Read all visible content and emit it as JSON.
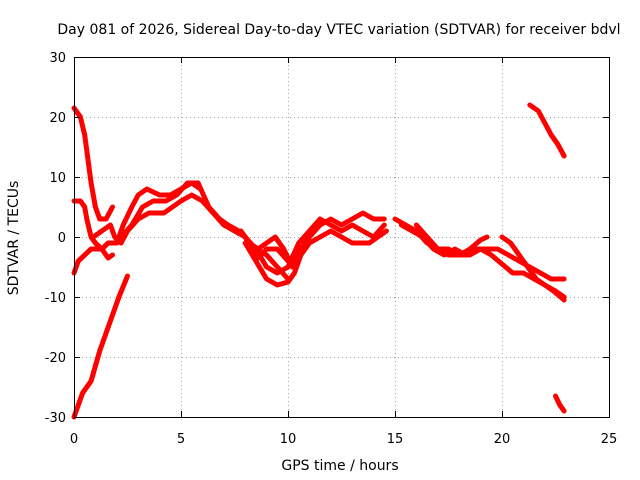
{
  "chart_data": {
    "type": "line",
    "title": "Day 081 of 2026, Sidereal Day-to-day VTEC variation (SDTVAR) for receiver bdvl",
    "xlabel": "GPS time / hours",
    "ylabel": "SDTVAR / TECUs",
    "xlim": [
      0,
      25
    ],
    "ylim": [
      -30,
      30
    ],
    "xticks": [
      0,
      5,
      10,
      15,
      20,
      25
    ],
    "yticks": [
      -30,
      -20,
      -10,
      0,
      10,
      20,
      30
    ],
    "grid": true,
    "legend": "none",
    "series_color": "#ff0000",
    "series": [
      {
        "name": "arc-1",
        "points": [
          [
            0.0,
            21.5
          ],
          [
            0.3,
            20
          ],
          [
            0.5,
            17
          ],
          [
            0.65,
            13
          ],
          [
            0.8,
            9
          ],
          [
            1.0,
            5
          ],
          [
            1.2,
            3
          ],
          [
            1.5,
            3
          ],
          [
            1.8,
            5
          ]
        ]
      },
      {
        "name": "arc-2",
        "points": [
          [
            0.0,
            6
          ],
          [
            0.3,
            6
          ],
          [
            0.5,
            5
          ],
          [
            0.6,
            3
          ],
          [
            0.8,
            0
          ],
          [
            1.0,
            -1
          ],
          [
            1.3,
            -2
          ],
          [
            1.6,
            -3.5
          ],
          [
            1.8,
            -3
          ]
        ]
      },
      {
        "name": "arc-3",
        "points": [
          [
            0.0,
            -6
          ],
          [
            0.2,
            -4
          ],
          [
            0.5,
            -3
          ],
          [
            0.8,
            -2
          ],
          [
            1.0,
            -2
          ],
          [
            1.3,
            -2
          ],
          [
            1.6,
            -1
          ],
          [
            2.0,
            -1
          ],
          [
            2.3,
            2
          ],
          [
            2.7,
            5
          ],
          [
            3.0,
            7
          ],
          [
            3.4,
            8
          ],
          [
            4.0,
            7
          ],
          [
            4.5,
            7
          ],
          [
            5.0,
            8
          ],
          [
            5.5,
            9
          ],
          [
            5.9,
            8
          ]
        ]
      },
      {
        "name": "arc-4",
        "points": [
          [
            0.0,
            -30
          ],
          [
            0.2,
            -28
          ],
          [
            0.4,
            -26
          ],
          [
            0.8,
            -24
          ],
          [
            1.2,
            -19
          ],
          [
            1.5,
            -16
          ],
          [
            1.8,
            -13
          ],
          [
            2.1,
            -10
          ],
          [
            2.5,
            -6.5
          ]
        ]
      },
      {
        "name": "arc-5",
        "points": [
          [
            0.9,
            0
          ],
          [
            1.3,
            1
          ],
          [
            1.7,
            2
          ],
          [
            1.9,
            0
          ],
          [
            2.2,
            -1
          ],
          [
            2.5,
            1
          ],
          [
            3.0,
            3
          ],
          [
            3.5,
            4
          ],
          [
            4.2,
            4
          ],
          [
            5.0,
            6
          ],
          [
            5.5,
            7
          ],
          [
            6.0,
            6
          ],
          [
            6.5,
            4
          ],
          [
            7.0,
            2
          ],
          [
            7.5,
            1
          ],
          [
            8.0,
            0
          ],
          [
            8.5,
            -2
          ],
          [
            9.0,
            -3
          ],
          [
            9.5,
            -5
          ],
          [
            10.0,
            -7
          ]
        ]
      },
      {
        "name": "arc-6",
        "points": [
          [
            2.2,
            0
          ],
          [
            2.7,
            2
          ],
          [
            3.2,
            5
          ],
          [
            3.7,
            6
          ],
          [
            4.3,
            6
          ],
          [
            4.8,
            7
          ],
          [
            5.3,
            9
          ],
          [
            5.8,
            9
          ],
          [
            6.3,
            5
          ],
          [
            6.8,
            3
          ],
          [
            7.2,
            2
          ],
          [
            7.7,
            1
          ],
          [
            8.0,
            0
          ],
          [
            8.3,
            -2
          ],
          [
            8.6,
            -3.5
          ],
          [
            9.0,
            -2
          ],
          [
            9.5,
            -2
          ],
          [
            10.0,
            -4
          ],
          [
            10.3,
            -3
          ]
        ]
      },
      {
        "name": "arc-7",
        "points": [
          [
            7.8,
            1
          ],
          [
            8.2,
            -1
          ],
          [
            8.6,
            -2
          ],
          [
            9.0,
            -1
          ],
          [
            9.4,
            0
          ],
          [
            9.8,
            -2
          ],
          [
            10.2,
            -5
          ],
          [
            10.6,
            -2
          ],
          [
            11.0,
            0
          ],
          [
            11.5,
            2
          ],
          [
            12.0,
            3
          ],
          [
            12.5,
            2
          ],
          [
            13.0,
            3
          ],
          [
            13.5,
            4
          ],
          [
            14.0,
            3
          ],
          [
            14.5,
            3
          ]
        ]
      },
      {
        "name": "arc-8",
        "points": [
          [
            8.0,
            -1
          ],
          [
            8.5,
            -4
          ],
          [
            9.0,
            -7
          ],
          [
            9.5,
            -8
          ],
          [
            10.0,
            -7.5
          ],
          [
            10.3,
            -6
          ],
          [
            10.6,
            -3
          ],
          [
            11.0,
            -1
          ],
          [
            11.5,
            0
          ],
          [
            12.0,
            1
          ],
          [
            12.5,
            0
          ],
          [
            13.0,
            -1
          ],
          [
            13.5,
            -1
          ],
          [
            13.8,
            -1
          ],
          [
            14.2,
            0
          ],
          [
            14.6,
            1
          ]
        ]
      },
      {
        "name": "arc-9",
        "points": [
          [
            8.5,
            -2
          ],
          [
            9.0,
            -5
          ],
          [
            9.5,
            -6
          ],
          [
            10.0,
            -5
          ],
          [
            10.5,
            -1
          ],
          [
            11.0,
            1
          ],
          [
            11.5,
            3
          ],
          [
            12.0,
            2
          ],
          [
            12.5,
            1
          ],
          [
            13.0,
            2
          ],
          [
            13.5,
            1
          ],
          [
            14.0,
            0
          ],
          [
            14.5,
            2
          ]
        ]
      },
      {
        "name": "arc-10",
        "points": [
          [
            15.0,
            3
          ],
          [
            15.5,
            2
          ],
          [
            16.0,
            1
          ],
          [
            16.5,
            -1
          ],
          [
            17.0,
            -2
          ],
          [
            17.5,
            -2
          ],
          [
            18.0,
            -3
          ],
          [
            18.5,
            -3
          ],
          [
            19.0,
            -2
          ],
          [
            19.5,
            -3
          ],
          [
            20.0,
            -4.5
          ],
          [
            20.5,
            -6
          ],
          [
            21.0,
            -6
          ],
          [
            21.5,
            -7
          ],
          [
            22.0,
            -8
          ],
          [
            22.5,
            -9
          ],
          [
            22.9,
            -10
          ]
        ]
      },
      {
        "name": "arc-11",
        "points": [
          [
            15.3,
            2
          ],
          [
            15.8,
            1
          ],
          [
            16.3,
            0
          ],
          [
            16.8,
            -2
          ],
          [
            17.3,
            -3
          ],
          [
            17.8,
            -2
          ],
          [
            18.3,
            -3
          ],
          [
            18.8,
            -2
          ],
          [
            19.3,
            -2
          ],
          [
            19.8,
            -2
          ],
          [
            20.3,
            -3
          ],
          [
            20.8,
            -4
          ],
          [
            21.3,
            -5
          ],
          [
            21.8,
            -6
          ],
          [
            22.3,
            -7
          ],
          [
            22.9,
            -7
          ]
        ]
      },
      {
        "name": "arc-12",
        "points": [
          [
            16.0,
            2
          ],
          [
            16.5,
            0
          ],
          [
            17.0,
            -2
          ],
          [
            17.5,
            -3
          ],
          [
            18.0,
            -3
          ],
          [
            18.5,
            -2
          ],
          [
            19.0,
            -0.5
          ],
          [
            19.3,
            0
          ]
        ]
      },
      {
        "name": "arc-13",
        "points": [
          [
            20.0,
            0
          ],
          [
            20.4,
            -1
          ],
          [
            20.8,
            -3
          ],
          [
            21.2,
            -5
          ],
          [
            21.6,
            -7
          ],
          [
            22.0,
            -8
          ],
          [
            22.4,
            -9
          ],
          [
            22.9,
            -10.5
          ]
        ]
      },
      {
        "name": "arc-14",
        "points": [
          [
            21.3,
            22
          ],
          [
            21.7,
            21
          ],
          [
            22.0,
            19
          ],
          [
            22.3,
            17
          ],
          [
            22.6,
            15.5
          ],
          [
            22.9,
            13.5
          ]
        ]
      },
      {
        "name": "arc-15",
        "points": [
          [
            22.5,
            -26.5
          ],
          [
            22.7,
            -28
          ],
          [
            22.9,
            -29
          ]
        ]
      }
    ]
  }
}
